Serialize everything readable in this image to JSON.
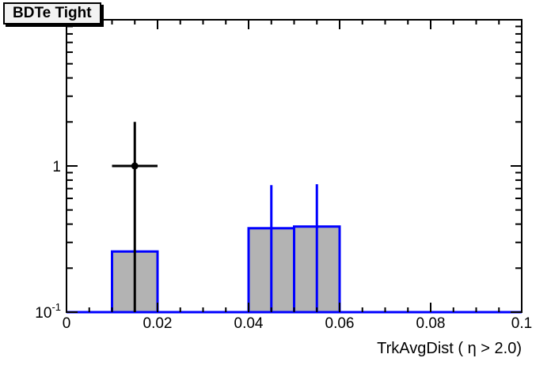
{
  "title_box": {
    "text": "BDTe Tight"
  },
  "chart_data": {
    "type": "histogram",
    "title": "BDTe Tight",
    "xlabel": "TrkAvgDist ( η > 2.0)",
    "ylabel": "",
    "x_range": [
      0,
      0.1
    ],
    "y_range": [
      0.1,
      10
    ],
    "y_scale": "log",
    "grid": false,
    "legend": "none",
    "x_ticks": [
      {
        "value": 0,
        "label": "0"
      },
      {
        "value": 0.02,
        "label": "0.02"
      },
      {
        "value": 0.04,
        "label": "0.04"
      },
      {
        "value": 0.06,
        "label": "0.06"
      },
      {
        "value": 0.08,
        "label": "0.08"
      },
      {
        "value": 0.1,
        "label": "0.1"
      }
    ],
    "x_minor_step": 0.005,
    "y_ticks": [
      {
        "value": 1,
        "mantissa": "1",
        "exponent": ""
      },
      {
        "value": 0.1,
        "mantissa": "10",
        "exponent": "-1"
      }
    ],
    "bins": [
      {
        "x_low": 0.01,
        "x_high": 0.02,
        "value": 0.26
      },
      {
        "x_low": 0.04,
        "x_high": 0.05,
        "value": 0.375
      },
      {
        "x_low": 0.05,
        "x_high": 0.06,
        "value": 0.385
      }
    ],
    "bin_error_bars": [
      {
        "x": 0.045,
        "y_top": 0.74,
        "y_bottom": 0.1
      },
      {
        "x": 0.055,
        "y_top": 0.75,
        "y_bottom": 0.1
      }
    ],
    "points": [
      {
        "x": 0.015,
        "y": 1.0,
        "y_err_top": 2.0,
        "y_err_bottom": 0.1,
        "x_err_low": 0.01,
        "x_err_high": 0.02
      }
    ],
    "colors": {
      "hist_line": "#0000ff",
      "hist_fill": "#b3b3b3",
      "marker": "#000000",
      "frame": "#000000"
    }
  }
}
